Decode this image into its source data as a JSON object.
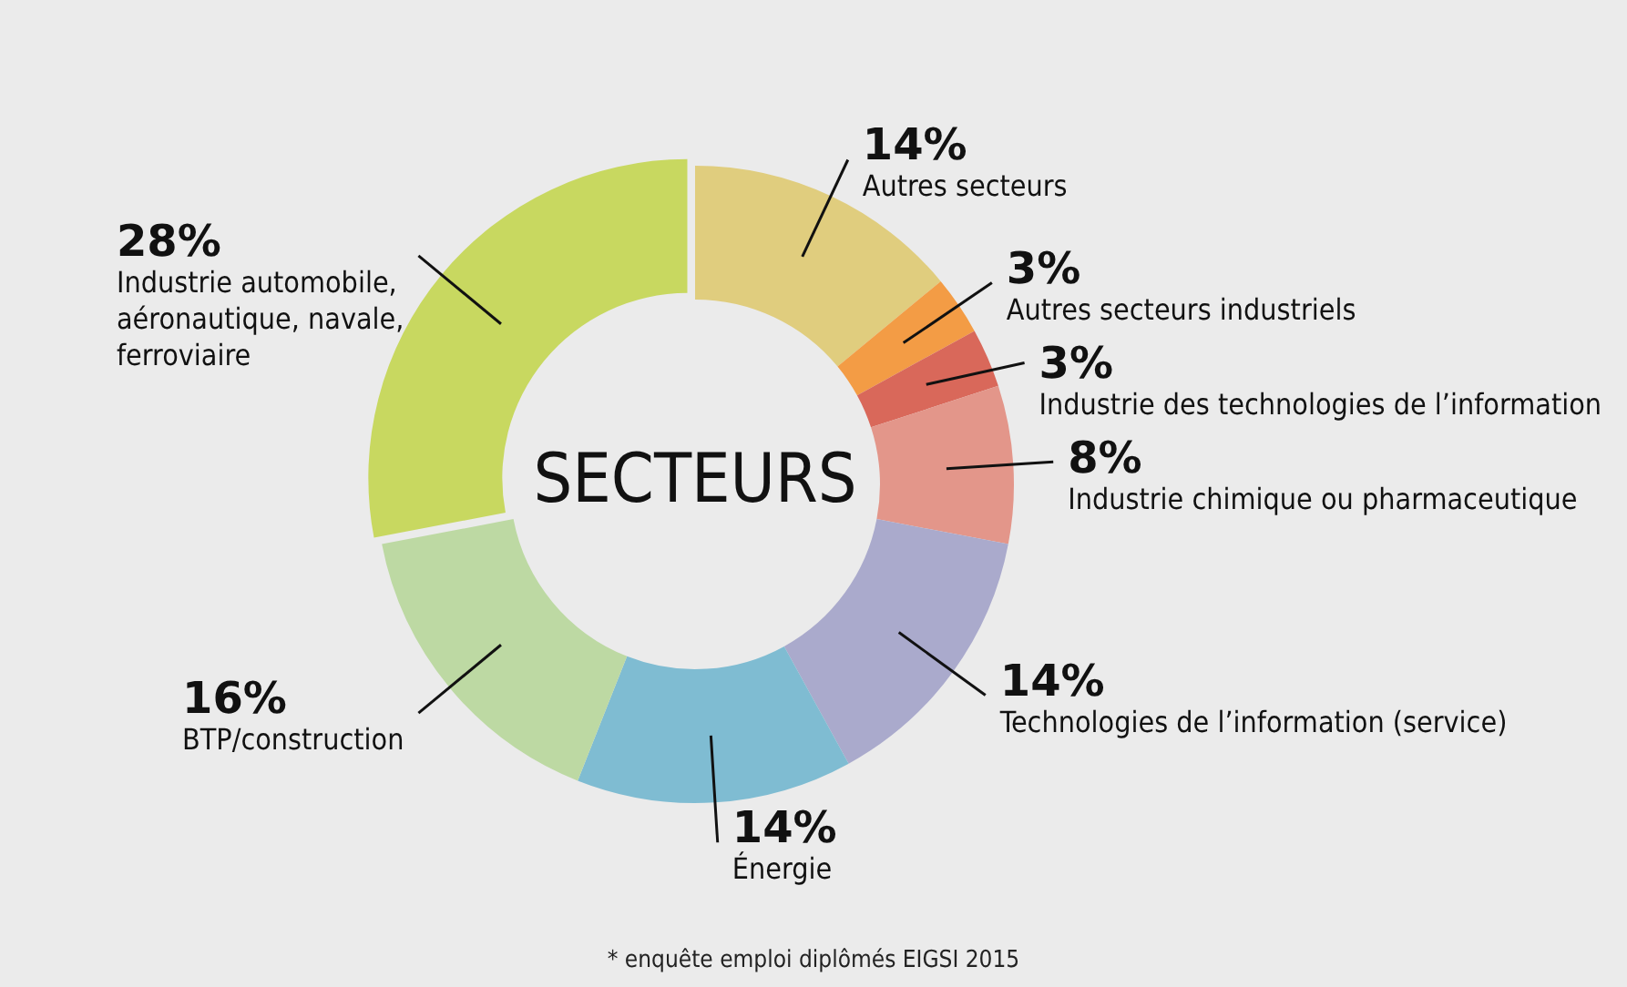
{
  "chart_data": {
    "type": "donut",
    "title": "SECTEURS",
    "categories": [
      "Autres secteurs",
      "Autres secteurs industriels",
      "Industrie des technologies de l’information",
      "Industrie chimique ou pharmaceutique",
      "Technologies de l’information (service)",
      "Énergie",
      "BTP/construction",
      "Industrie automobile, aéronautique, navale, ferroviaire"
    ],
    "values": [
      14,
      3,
      3,
      8,
      14,
      14,
      16,
      28
    ],
    "value_labels": [
      "14%",
      "3%",
      "3%",
      "8%",
      "14%",
      "14%",
      "16%",
      "28%"
    ],
    "colors": [
      "#e0cd7e",
      "#f39c45",
      "#d9685a",
      "#e3968a",
      "#aaaacc",
      "#7fbcd2",
      "#bdd9a3",
      "#c8d860"
    ],
    "legend": false,
    "annotations": [
      "* enquête emploi diplômés EIGSI 2015"
    ]
  }
}
